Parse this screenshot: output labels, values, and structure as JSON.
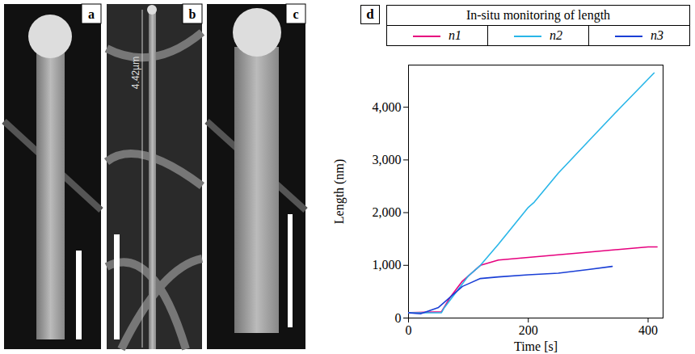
{
  "panels": [
    {
      "label": "a"
    },
    {
      "label": "b",
      "annotation": "4.42µm"
    },
    {
      "label": "c"
    },
    {
      "label": "d"
    }
  ],
  "chart_data": {
    "type": "line",
    "title": "In-situ monitoring of length",
    "x_label": "Time [s]",
    "y_label": "Length (nm)",
    "xlim": [
      0,
      425
    ],
    "ylim": [
      0,
      4800
    ],
    "xticks": [
      0,
      200,
      400
    ],
    "yticks": [
      0,
      {
        "value": 1000,
        "label": "1,000"
      },
      {
        "value": 2000,
        "label": "2,000"
      },
      {
        "value": 3000,
        "label": "3,000"
      },
      {
        "value": 4000,
        "label": "4,000"
      }
    ],
    "legend": "top",
    "grid": false,
    "series": [
      {
        "name": "n1",
        "color": "#e6007e",
        "x": [
          0,
          55,
          70,
          90,
          110,
          120,
          150,
          200,
          250,
          300,
          350,
          400,
          415
        ],
        "values": [
          100,
          120,
          400,
          700,
          900,
          1000,
          1100,
          1150,
          1200,
          1250,
          1300,
          1350,
          1350
        ]
      },
      {
        "name": "n2",
        "color": "#29b6e8",
        "x": [
          0,
          55,
          60,
          80,
          100,
          120,
          150,
          200,
          210,
          250,
          300,
          350,
          410
        ],
        "values": [
          100,
          100,
          200,
          500,
          800,
          1000,
          1400,
          2100,
          2200,
          2750,
          3350,
          3950,
          4650
        ]
      },
      {
        "name": "n3",
        "color": "#1a3fd6",
        "x": [
          0,
          20,
          50,
          70,
          90,
          100,
          120,
          150,
          200,
          250,
          300,
          340
        ],
        "values": [
          100,
          80,
          200,
          400,
          600,
          650,
          750,
          780,
          820,
          850,
          920,
          980
        ]
      }
    ]
  }
}
